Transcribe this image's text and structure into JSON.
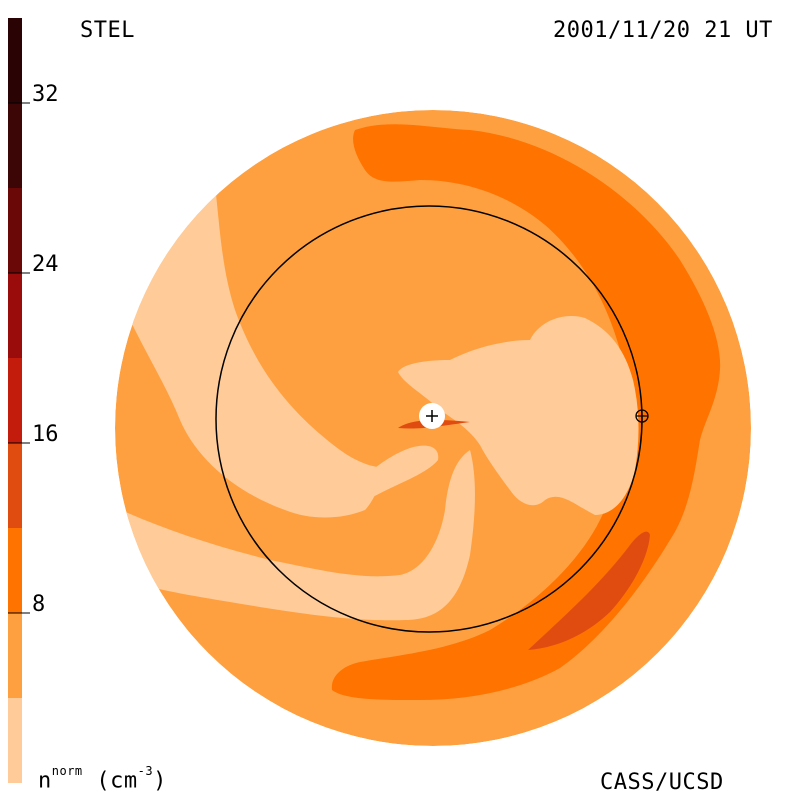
{
  "header": {
    "instrument": "STEL",
    "timestamp": "2001/11/20 21 UT"
  },
  "footer": {
    "credit": "CASS/UCSD",
    "units_base": "n",
    "units_sup": "norm",
    "units_rest": " (cm",
    "units_exp": "-3",
    "units_close": ")"
  },
  "colorbar": {
    "ticks": [
      "32",
      "24",
      "16",
      "8"
    ],
    "colors": [
      "#2a0404",
      "#520808",
      "#8c0c0c",
      "#c01c0c",
      "#e04c10",
      "#ff7400",
      "#ffa040",
      "#ffcc99"
    ]
  },
  "map": {
    "colors": {
      "background": "#ffa040",
      "light": "#ffcc99",
      "medium": "#ff7400",
      "dark": "#e04c10"
    },
    "markers": {
      "sun": "+",
      "earth": "⊕"
    }
  }
}
